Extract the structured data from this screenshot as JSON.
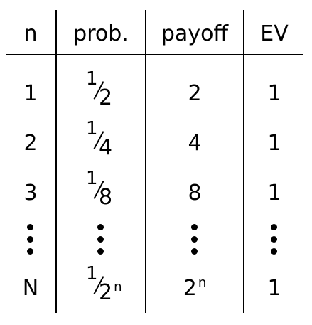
{
  "headers": {
    "n": "n",
    "prob": "prob.",
    "payoff": "payoff",
    "ev": "EV"
  },
  "rows": [
    {
      "n": "1",
      "prob_num": "1",
      "prob_den": "2",
      "prob_exp": "",
      "payoff": "2",
      "payoff_exp": "",
      "ev": "1"
    },
    {
      "n": "2",
      "prob_num": "1",
      "prob_den": "4",
      "prob_exp": "",
      "payoff": "4",
      "payoff_exp": "",
      "ev": "1"
    },
    {
      "n": "3",
      "prob_num": "1",
      "prob_den": "8",
      "prob_exp": "",
      "payoff": "8",
      "payoff_exp": "",
      "ev": "1"
    },
    {
      "n": "N",
      "prob_num": "1",
      "prob_den": "2",
      "prob_exp": "n",
      "payoff": "2",
      "payoff_exp": "n",
      "ev": "1"
    }
  ]
}
